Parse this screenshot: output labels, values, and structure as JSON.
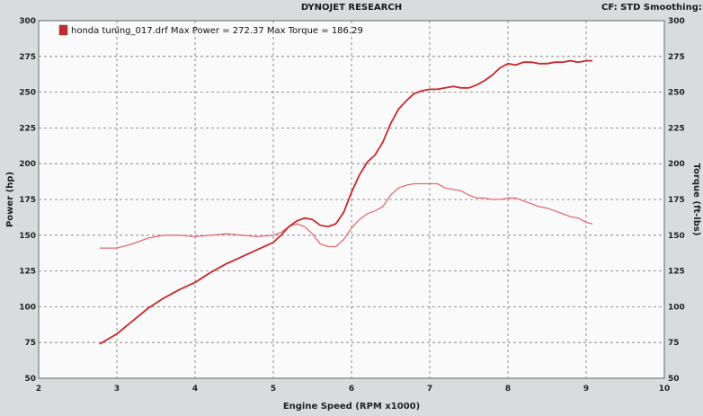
{
  "header": {
    "title": "DYNOJET RESEARCH",
    "status": "CF: STD   Smoothing: S"
  },
  "colors": {
    "power": "#c8282d",
    "torque": "#de6e74",
    "plot_bg": "#fafafa",
    "page_bg": "#d9dcdd"
  },
  "chart_data": {
    "type": "line",
    "title": "",
    "xlabel": "Engine Speed (RPM x1000)",
    "ylabel_left": "Power (hp)",
    "ylabel_right": "Torque (ft-lbs)",
    "xlim": [
      2,
      10
    ],
    "ylim": [
      50,
      300
    ],
    "x_ticks": [
      "2",
      "3",
      "4",
      "5",
      "6",
      "7",
      "8",
      "9",
      "10"
    ],
    "y_ticks": [
      "50",
      "75",
      "100",
      "125",
      "150",
      "175",
      "200",
      "225",
      "250",
      "275",
      "300"
    ],
    "grid": true,
    "legend": "top-left",
    "legend_text": "honda tuning_017.drf Max Power = 272.37 Max Torque = 186.29",
    "series": [
      {
        "name": "power",
        "x": [
          2.78,
          3.0,
          3.2,
          3.4,
          3.6,
          3.8,
          4.0,
          4.2,
          4.4,
          4.6,
          4.8,
          5.0,
          5.1,
          5.2,
          5.3,
          5.4,
          5.5,
          5.6,
          5.7,
          5.8,
          5.9,
          6.0,
          6.1,
          6.2,
          6.3,
          6.4,
          6.5,
          6.6,
          6.7,
          6.8,
          6.9,
          7.0,
          7.1,
          7.2,
          7.3,
          7.4,
          7.5,
          7.6,
          7.7,
          7.8,
          7.9,
          8.0,
          8.1,
          8.2,
          8.3,
          8.4,
          8.5,
          8.6,
          8.7,
          8.8,
          8.9,
          9.0,
          9.08
        ],
        "y": [
          74,
          81,
          90,
          99,
          106,
          112,
          117,
          124,
          130,
          135,
          140,
          145,
          150,
          156,
          160,
          162,
          161,
          157,
          156,
          158,
          166,
          180,
          192,
          201,
          206,
          215,
          228,
          238,
          244,
          249,
          251,
          252,
          252,
          253,
          254,
          253,
          253,
          255,
          258,
          262,
          267,
          270,
          269,
          271,
          271,
          270,
          270,
          271,
          271,
          272,
          271,
          272,
          272
        ]
      },
      {
        "name": "torque",
        "x": [
          2.78,
          3.0,
          3.2,
          3.4,
          3.6,
          3.8,
          4.0,
          4.2,
          4.4,
          4.6,
          4.8,
          5.0,
          5.1,
          5.2,
          5.3,
          5.4,
          5.5,
          5.6,
          5.7,
          5.8,
          5.9,
          6.0,
          6.1,
          6.2,
          6.3,
          6.4,
          6.5,
          6.6,
          6.7,
          6.8,
          6.9,
          7.0,
          7.1,
          7.2,
          7.3,
          7.4,
          7.5,
          7.6,
          7.7,
          7.8,
          7.9,
          8.0,
          8.1,
          8.2,
          8.3,
          8.4,
          8.5,
          8.6,
          8.7,
          8.8,
          8.9,
          9.0,
          9.08
        ],
        "y": [
          141,
          141,
          144,
          148,
          150,
          150,
          149,
          150,
          151,
          150,
          149,
          150,
          152,
          156,
          158,
          156,
          151,
          144,
          142,
          142,
          147,
          155,
          161,
          165,
          167,
          170,
          178,
          183,
          185,
          186,
          186,
          186,
          186,
          183,
          182,
          181,
          178,
          176,
          176,
          175,
          175,
          176,
          176,
          174,
          172,
          170,
          169,
          167,
          165,
          163,
          162,
          159,
          158
        ]
      }
    ]
  }
}
